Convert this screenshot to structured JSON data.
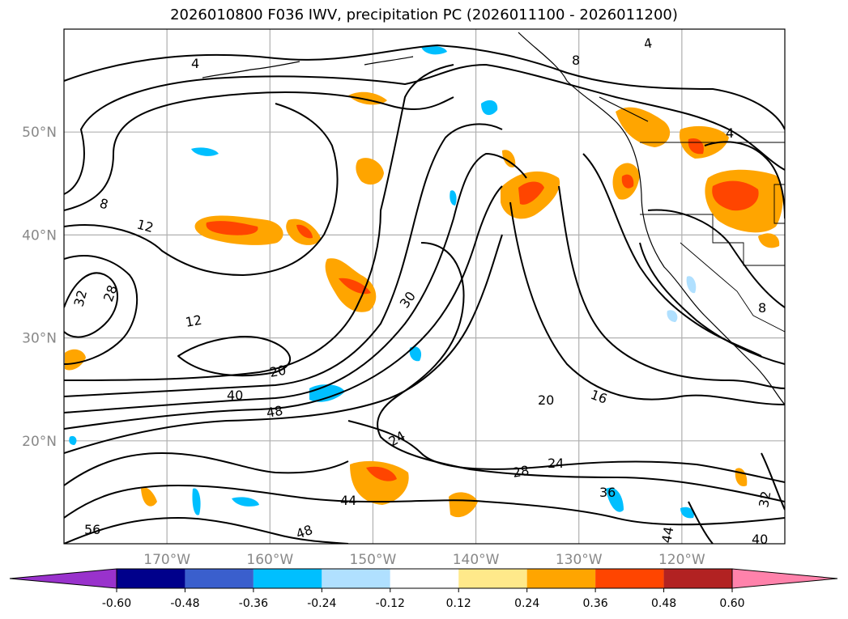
{
  "title": "2026010800 F036 IWV, precipitation PC (2026011100 - 2026011200)",
  "map": {
    "lon_range": [
      -180,
      -110
    ],
    "lat_range": [
      10,
      60
    ],
    "lon_ticks": [
      -170,
      -160,
      -150,
      -140,
      -130,
      -120
    ],
    "lon_tick_labels": [
      "170°W",
      "160°W",
      "150°W",
      "140°W",
      "130°W",
      "120°W"
    ],
    "lat_ticks": [
      20,
      30,
      40,
      50
    ],
    "lat_tick_labels": [
      "20°N",
      "30°N",
      "40°N",
      "50°N"
    ],
    "gridlines": true,
    "contour_color": "#000000",
    "contour_labels": [
      "4",
      "8",
      "8",
      "12",
      "12",
      "16",
      "20",
      "20",
      "24",
      "24",
      "28",
      "28",
      "30",
      "32",
      "32",
      "36",
      "40",
      "40",
      "44",
      "44",
      "48",
      "48",
      "4",
      "4",
      "8",
      "56"
    ],
    "colorbar": {
      "ticks": [
        "-0.60",
        "-0.48",
        "-0.36",
        "-0.24",
        "-0.12",
        "0.12",
        "0.24",
        "0.36",
        "0.48",
        "0.60"
      ],
      "colors": [
        "#9932cc",
        "#00008b",
        "#3a5fcd",
        "#00bfff",
        "#b0e0ff",
        "#ffffff",
        "#ffe98a",
        "#ffa500",
        "#ff4500",
        "#b22222",
        "#ff82ab"
      ]
    }
  }
}
